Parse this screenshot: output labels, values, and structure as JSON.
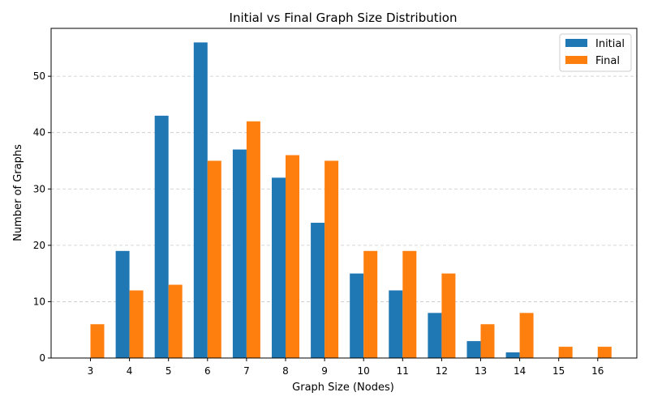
{
  "chart_data": {
    "type": "bar",
    "title": "Initial vs Final Graph Size Distribution",
    "xlabel": "Graph Size (Nodes)",
    "ylabel": "Number of Graphs",
    "categories": [
      "3",
      "4",
      "5",
      "6",
      "7",
      "8",
      "9",
      "10",
      "11",
      "12",
      "13",
      "14",
      "15",
      "16"
    ],
    "series": [
      {
        "name": "Initial",
        "color": "#1f77b4",
        "values": [
          0,
          19,
          43,
          56,
          37,
          32,
          24,
          15,
          12,
          8,
          3,
          1,
          0,
          0
        ]
      },
      {
        "name": "Final",
        "color": "#ff7f0e",
        "values": [
          6,
          12,
          13,
          35,
          42,
          36,
          35,
          19,
          19,
          15,
          6,
          8,
          2,
          2
        ]
      }
    ],
    "ylim": [
      0,
      58.5
    ],
    "yticks": [
      0,
      10,
      20,
      30,
      40,
      50
    ],
    "grid": "y-dashed",
    "legend_position": "top-right"
  }
}
